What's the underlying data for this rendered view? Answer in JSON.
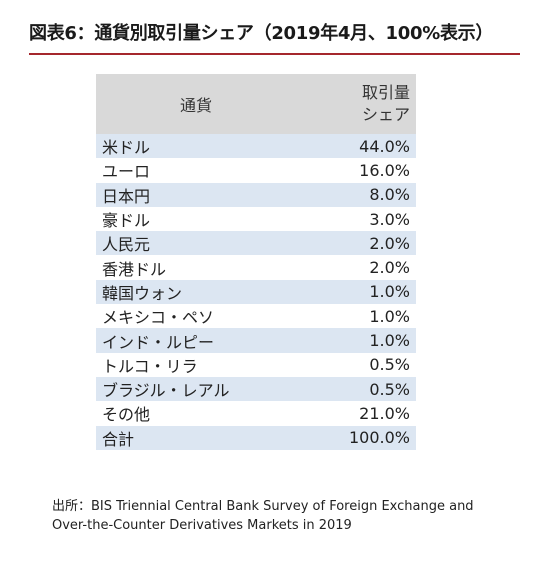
{
  "title": "図表6：通貨別取引量シェア（2019年4月、100%表示）",
  "chart_data": {
    "type": "table",
    "columns": [
      "通貨",
      "取引量シェア"
    ],
    "column_header_lines": [
      [
        "通貨"
      ],
      [
        "取引量",
        "シェア"
      ]
    ],
    "rows": [
      {
        "currency": "米ドル",
        "share": "44.0%",
        "value": 44.0
      },
      {
        "currency": "ユーロ",
        "share": "16.0%",
        "value": 16.0
      },
      {
        "currency": "日本円",
        "share": "8.0%",
        "value": 8.0
      },
      {
        "currency": "豪ドル",
        "share": "3.0%",
        "value": 3.0
      },
      {
        "currency": "人民元",
        "share": "2.0%",
        "value": 2.0
      },
      {
        "currency": "香港ドル",
        "share": "2.0%",
        "value": 2.0
      },
      {
        "currency": "韓国ウォン",
        "share": "1.0%",
        "value": 1.0
      },
      {
        "currency": "メキシコ・ペソ",
        "share": "1.0%",
        "value": 1.0
      },
      {
        "currency": "インド・ルピー",
        "share": "1.0%",
        "value": 1.0
      },
      {
        "currency": "トルコ・リラ",
        "share": "0.5%",
        "value": 0.5
      },
      {
        "currency": "ブラジル・レアル",
        "share": "0.5%",
        "value": 0.5
      },
      {
        "currency": "その他",
        "share": "21.0%",
        "value": 21.0
      },
      {
        "currency": "合計",
        "share": "100.0%",
        "value": 100.0
      }
    ]
  },
  "source_lines": [
    "出所：BIS Triennial Central Bank Survey of Foreign Exchange and",
    "Over-the-Counter Derivatives Markets in 2019"
  ],
  "colors": {
    "title_rule": "#a5272d",
    "header_bg": "#d9d9d9",
    "band_bg": "#dce6f2"
  }
}
